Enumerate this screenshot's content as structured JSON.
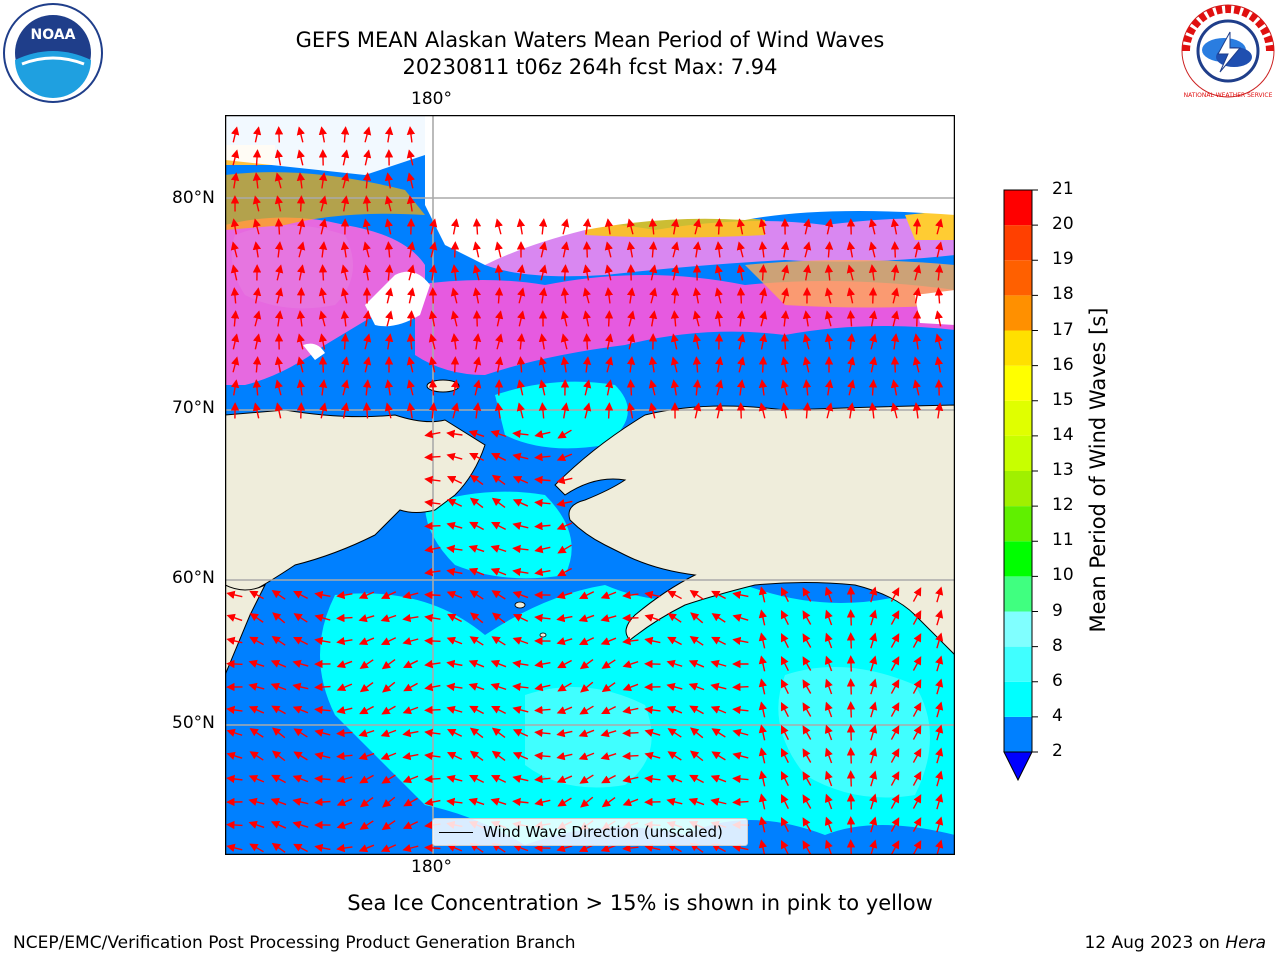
{
  "title": {
    "line1": "GEFS MEAN Alaskan Waters Mean Period of Wind Waves",
    "line2": "20230811 t06z 264h fcst   Max: 7.94"
  },
  "map": {
    "lon_label_top": "180°",
    "lon_label_bottom": "180°",
    "lat_labels": [
      "80°N",
      "70°N",
      "60°N",
      "50°N"
    ],
    "land_color": "#efeddb",
    "legend_label": "Wind Wave Direction (unscaled)",
    "arrow_color": "#ff0000"
  },
  "colorbar": {
    "title": "Mean Period of Wind Waves [s]",
    "tick_labels": [
      "21",
      "20",
      "19",
      "18",
      "17",
      "16",
      "15",
      "14",
      "13",
      "12",
      "11",
      "10",
      "9",
      "8",
      "6",
      "4",
      "2"
    ],
    "colors": [
      "#0000ff",
      "#0080ff",
      "#00ffff",
      "#40ffff",
      "#80ffff",
      "#aaffff",
      "#40ff80",
      "#00ff00",
      "#60f000",
      "#a0f000",
      "#c8ff00",
      "#e0ff00",
      "#ffff00",
      "#ffe000",
      "#ffb000",
      "#ff9000",
      "#ff6000",
      "#ff4000",
      "#ff0000"
    ]
  },
  "caption": "Sea Ice Concentration > 15% is shown in pink to yellow",
  "footer": {
    "left": "NCEP/EMC/Verification Post Processing Product Generation Branch",
    "right_date": "12 Aug 2023 on ",
    "right_host": "Hera"
  },
  "logos": {
    "noaa_text": "NOAA",
    "nws_text": "NATIONAL WEATHER SERVICE"
  }
}
